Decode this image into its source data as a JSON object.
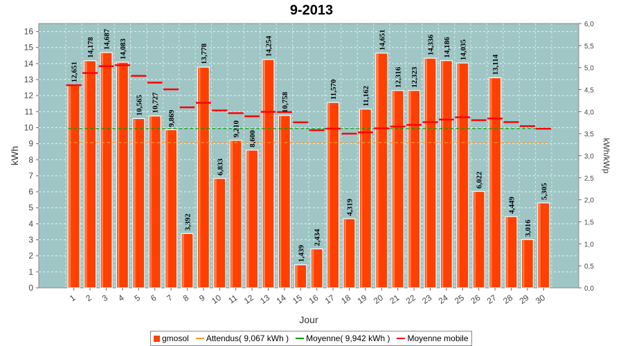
{
  "chart_data": {
    "type": "bar",
    "title": "9-2013",
    "xlabel": "Jour",
    "ylabel": "kWh",
    "y2label": "kWh/kWp",
    "ylim": [
      0,
      16.5
    ],
    "y2lim": [
      0,
      6.0
    ],
    "yticks": [
      "0",
      "1",
      "2",
      "3",
      "4",
      "5",
      "6",
      "7",
      "8",
      "9",
      "10",
      "11",
      "12",
      "13",
      "14",
      "15",
      "16"
    ],
    "y2ticks": [
      "0,0",
      "0,5",
      "1,0",
      "1,5",
      "2,0",
      "2,5",
      "3,0",
      "3,5",
      "4,0",
      "4,5",
      "5,0",
      "5,5",
      "6,0"
    ],
    "categories": [
      "1",
      "2",
      "3",
      "4",
      "5",
      "6",
      "7",
      "8",
      "9",
      "10",
      "11",
      "12",
      "13",
      "14",
      "15",
      "16",
      "17",
      "18",
      "19",
      "20",
      "21",
      "22",
      "23",
      "24",
      "25",
      "26",
      "27",
      "28",
      "29",
      "30"
    ],
    "series": [
      {
        "name": "gmosol",
        "type": "bar",
        "color": "#ff4000",
        "values": [
          12.651,
          14.178,
          14.687,
          14.083,
          10.565,
          10.727,
          9.869,
          3.392,
          13.778,
          6.833,
          9.21,
          8.6,
          14.254,
          10.758,
          1.439,
          2.434,
          11.57,
          4.319,
          11.162,
          14.651,
          12.316,
          12.323,
          14.336,
          14.186,
          14.035,
          6.022,
          13.114,
          4.449,
          3.016,
          5.305
        ],
        "labels": [
          "12,651",
          "14,178",
          "14,687",
          "14,083",
          "10,565",
          "10,727",
          "9,869",
          "3,392",
          "13,778",
          "6,833",
          "9,210",
          "8,600",
          "14,254",
          "10,758",
          "1,439",
          "2,434",
          "11,570",
          "4,319",
          "11,162",
          "14,651",
          "12,316",
          "12,323",
          "14,336",
          "14,186",
          "14,035",
          "6,022",
          "13,114",
          "4,449",
          "3,016",
          "5,305"
        ]
      },
      {
        "name": "Attendus( 9,067 kWh )",
        "type": "line",
        "color": "#ff9a2e",
        "value": 9.067
      },
      {
        "name": "Moyenne( 9,942 kWh )",
        "type": "line",
        "color": "#009900",
        "value": 9.942
      },
      {
        "name": "Moyenne mobile",
        "type": "step",
        "color": "#ff0000",
        "values": [
          12.651,
          13.414,
          13.838,
          13.9,
          13.233,
          12.815,
          12.393,
          11.268,
          11.547,
          11.076,
          10.906,
          10.714,
          10.986,
          10.97,
          10.335,
          9.841,
          9.942,
          9.629,
          9.709,
          9.956,
          10.068,
          10.172,
          10.346,
          10.507,
          10.648,
          10.471,
          10.57,
          10.351,
          10.097,
          9.936
        ]
      }
    ],
    "grid": true,
    "legend": "bottom"
  }
}
